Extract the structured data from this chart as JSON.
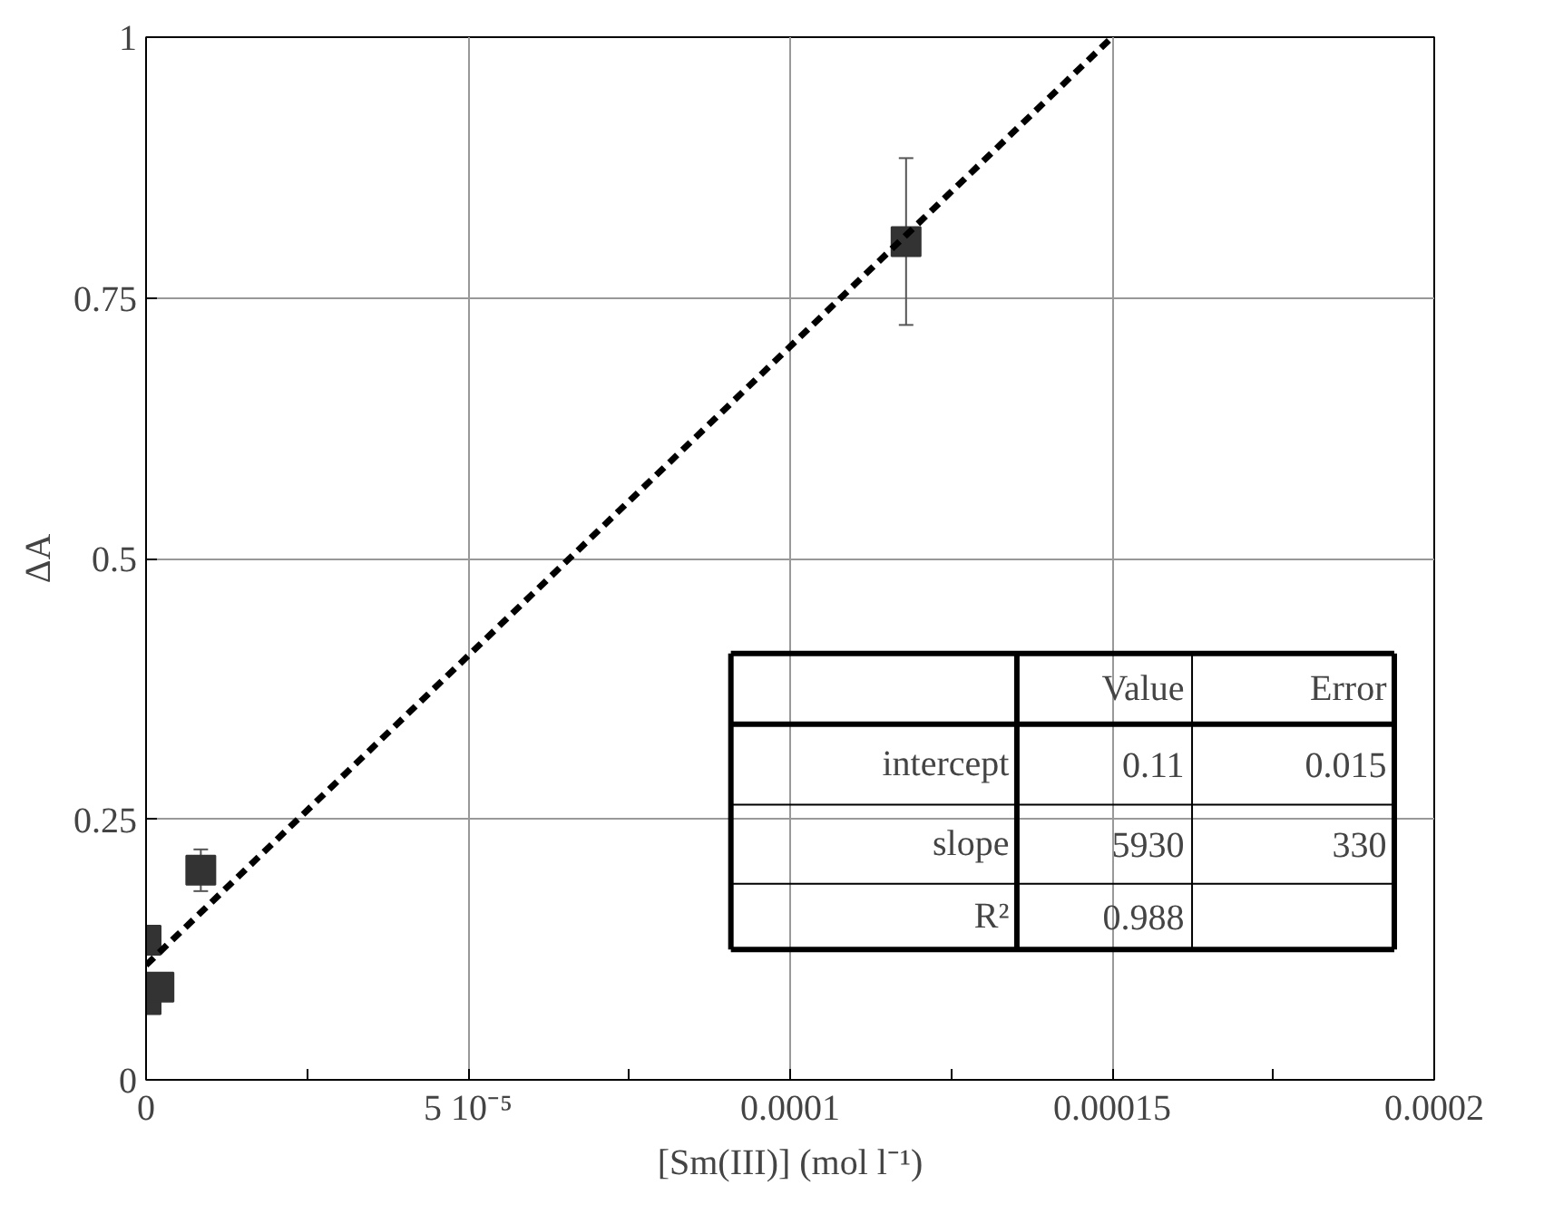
{
  "chart_data": {
    "type": "scatter",
    "xlabel": "[Sm(III)] (mol l⁻¹)",
    "ylabel": "ΔA",
    "xlim": [
      0,
      0.0002
    ],
    "ylim": [
      0,
      1
    ],
    "xticks": [
      0,
      {
        "value": 2.5e-05,
        "label": null
      },
      {
        "value": 5e-05,
        "label": "5 10⁻⁵"
      },
      {
        "value": 7.5e-05,
        "label": null
      },
      0.0001,
      {
        "value": 0.000125,
        "label": null
      },
      0.00015,
      {
        "value": 0.000175,
        "label": null
      },
      0.0002
    ],
    "yticks": [
      0,
      0.25,
      0.5,
      0.75,
      1
    ],
    "grid": true,
    "series": [
      {
        "color": "#333333",
        "marker": "square",
        "x": [
          0,
          0,
          2e-06,
          8.5e-06,
          0.000118
        ],
        "values": [
          0.134,
          0.077,
          0.089,
          0.201,
          0.804
        ],
        "errors": [
          null,
          null,
          null,
          0.02,
          0.08
        ]
      },
      {
        "type": "line",
        "color": "#000000",
        "line_style": "dashed",
        "marker": "none",
        "x": [
          0,
          0.00015
        ],
        "values": [
          0.11,
          1.0
        ]
      }
    ],
    "annotations": [
      "Value",
      "Error",
      "intercept",
      "0.11",
      "0.015",
      "slope",
      "5930",
      "330",
      "R²",
      "0.988"
    ]
  }
}
